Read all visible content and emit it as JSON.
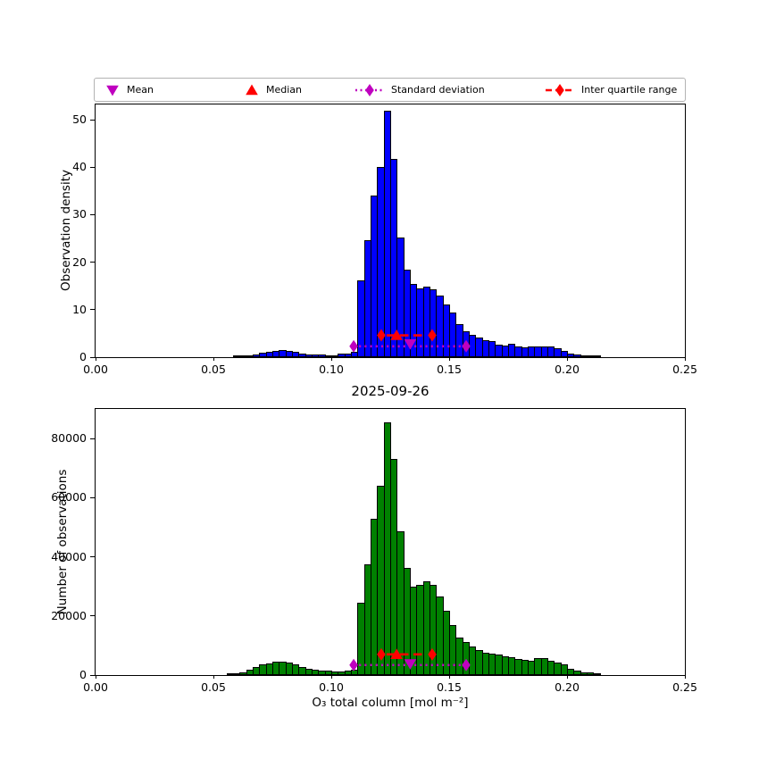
{
  "title": "2025-09-26",
  "xlabel": "O₃ total column [mol m⁻²]",
  "legend": {
    "items": [
      {
        "label": "Mean",
        "marker": "triangle-down",
        "color": "#bf00bf",
        "line": "none"
      },
      {
        "label": "Median",
        "marker": "triangle-up",
        "color": "#ff0000",
        "line": "none"
      },
      {
        "label": "Standard deviation",
        "marker": "diamond",
        "color": "#bf00bf",
        "line": "dotted"
      },
      {
        "label": "Inter quartile range",
        "marker": "diamond",
        "color": "#ff0000",
        "line": "dashed"
      }
    ]
  },
  "chart_data": [
    {
      "type": "bar",
      "name": "observation-density-histogram",
      "ylabel": "Observation density",
      "bar_color": "#0000ff",
      "edge_color": "#000000",
      "xlim": [
        0,
        0.25
      ],
      "ylim": [
        0,
        53.2
      ],
      "xticks": {
        "values": [
          0,
          0.05,
          0.1,
          0.15,
          0.2,
          0.25
        ],
        "labels": [
          "0.00",
          "0.05",
          "0.10",
          "0.15",
          "0.20",
          "0.25"
        ]
      },
      "yticks": {
        "values": [
          0,
          10,
          20,
          30,
          40,
          50
        ],
        "labels": [
          "0",
          "10",
          "20",
          "30",
          "40",
          "50"
        ]
      },
      "bins": {
        "start": 0.055556,
        "width": 0.0027778
      },
      "values": [
        0,
        0.1,
        0.2,
        0.3,
        0.6,
        0.9,
        1.2,
        1.4,
        1.5,
        1.4,
        1.1,
        0.8,
        0.65,
        0.55,
        0.5,
        0.45,
        0.4,
        0.7,
        0.75,
        1.1,
        16.2,
        24.6,
        34.0,
        40.0,
        51.8,
        41.8,
        25.1,
        18.5,
        15.4,
        14.4,
        14.9,
        14.2,
        13.0,
        11.1,
        9.4,
        6.9,
        5.5,
        4.7,
        4.1,
        3.6,
        3.4,
        2.7,
        2.4,
        2.8,
        2.2,
        2.1,
        2.2,
        2.2,
        2.3,
        2.2,
        1.8,
        1.4,
        0.7,
        0.6,
        0.3,
        0.2,
        0.1
      ],
      "markers": {
        "mean": {
          "x": 0.1335,
          "y": 2.8,
          "color": "#bf00bf"
        },
        "median": {
          "x": 0.1277,
          "y": 4.6,
          "color": "#ff0000"
        },
        "std": {
          "x1": 0.1095,
          "x2": 0.1572,
          "y": 2.3,
          "color": "#bf00bf",
          "style": "dotted"
        },
        "iqr": {
          "x1": 0.1212,
          "x2": 0.1428,
          "y": 4.6,
          "color": "#ff0000",
          "style": "dashed"
        }
      }
    },
    {
      "type": "bar",
      "name": "number-of-observations-histogram",
      "ylabel": "Number of observations",
      "bar_color": "#008000",
      "edge_color": "#000000",
      "xlim": [
        0,
        0.25
      ],
      "ylim": [
        0,
        90000
      ],
      "xticks": {
        "values": [
          0,
          0.05,
          0.1,
          0.15,
          0.2,
          0.25
        ],
        "labels": [
          "0.00",
          "0.05",
          "0.10",
          "0.15",
          "0.20",
          "0.25"
        ]
      },
      "yticks": {
        "values": [
          0,
          20000,
          40000,
          60000,
          80000
        ],
        "labels": [
          "0",
          "20000",
          "40000",
          "60000",
          "80000"
        ]
      },
      "bins": {
        "start": 0.055556,
        "width": 0.0027778
      },
      "values": [
        200,
        500,
        1000,
        1800,
        2800,
        3500,
        4000,
        4400,
        4600,
        4300,
        3600,
        2800,
        2100,
        1700,
        1600,
        1400,
        1300,
        1300,
        1500,
        1800,
        24500,
        37500,
        52900,
        64000,
        85500,
        73000,
        48600,
        36300,
        30000,
        30500,
        31800,
        30500,
        26500,
        21800,
        16900,
        12700,
        11100,
        9700,
        8400,
        7700,
        7400,
        7000,
        6300,
        6000,
        5300,
        5000,
        4800,
        5600,
        5600,
        4800,
        4300,
        3600,
        2000,
        1600,
        1000,
        800,
        500
      ],
      "markers": {
        "mean": {
          "x": 0.1335,
          "y": 3800,
          "color": "#bf00bf"
        },
        "median": {
          "x": 0.1277,
          "y": 7000,
          "color": "#ff0000"
        },
        "std": {
          "x1": 0.1095,
          "x2": 0.1572,
          "y": 3400,
          "color": "#bf00bf",
          "style": "dotted"
        },
        "iqr": {
          "x1": 0.1212,
          "x2": 0.1428,
          "y": 7000,
          "color": "#ff0000",
          "style": "dashed"
        }
      }
    }
  ]
}
